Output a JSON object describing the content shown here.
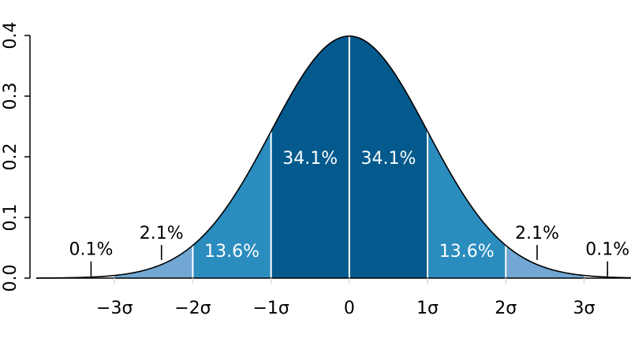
{
  "chart_data": {
    "type": "area",
    "title": "",
    "xlabel": "",
    "ylabel": "",
    "xlim": [
      -4,
      3.6
    ],
    "ylim": [
      0,
      0.4
    ],
    "mean": 0,
    "sd": 1,
    "grid": false,
    "x_ticks": [
      {
        "value": -3,
        "label": "−3σ"
      },
      {
        "value": -2,
        "label": "−2σ"
      },
      {
        "value": -1,
        "label": "−1σ"
      },
      {
        "value": 0,
        "label": "0"
      },
      {
        "value": 1,
        "label": "1σ"
      },
      {
        "value": 2,
        "label": "2σ"
      },
      {
        "value": 3,
        "label": "3σ"
      }
    ],
    "y_ticks": [
      {
        "value": 0.0,
        "label": "0.0"
      },
      {
        "value": 0.1,
        "label": "0.1"
      },
      {
        "value": 0.2,
        "label": "0.2"
      },
      {
        "value": 0.3,
        "label": "0.3"
      },
      {
        "value": 0.4,
        "label": "0.4"
      }
    ],
    "bands": [
      {
        "from": -3,
        "to": -2,
        "color": "#71a7d2"
      },
      {
        "from": -2,
        "to": -1,
        "color": "#2b8cbe"
      },
      {
        "from": -1,
        "to": 0,
        "color": "#045a8d"
      },
      {
        "from": 0,
        "to": 1,
        "color": "#045a8d"
      },
      {
        "from": 1,
        "to": 2,
        "color": "#2b8cbe"
      },
      {
        "from": 2,
        "to": 3,
        "color": "#71a7d2"
      }
    ],
    "band_dividers": [
      -2,
      -1,
      0,
      1,
      2
    ],
    "band_labels": [
      {
        "x": -0.5,
        "y": 0.188,
        "label": "34.1%",
        "style": "band"
      },
      {
        "x": 0.5,
        "y": 0.188,
        "label": "34.1%",
        "style": "band"
      },
      {
        "x": -1.5,
        "y": 0.035,
        "label": "13.6%",
        "style": "band"
      },
      {
        "x": 1.5,
        "y": 0.035,
        "label": "13.6%",
        "style": "band"
      }
    ],
    "tail_labels": [
      {
        "x": -2.4,
        "y": 0.065,
        "label": "2.1%",
        "marker_x": -2.4
      },
      {
        "x": 2.4,
        "y": 0.065,
        "label": "2.1%",
        "marker_x": 2.4
      },
      {
        "x": -3.3,
        "y": 0.038,
        "label": "0.1%",
        "marker_x": -3.3
      },
      {
        "x": 3.3,
        "y": 0.038,
        "label": "0.1%",
        "marker_x": 3.3
      }
    ],
    "curve_color": "#000000",
    "divider_color": "#ffffff"
  }
}
